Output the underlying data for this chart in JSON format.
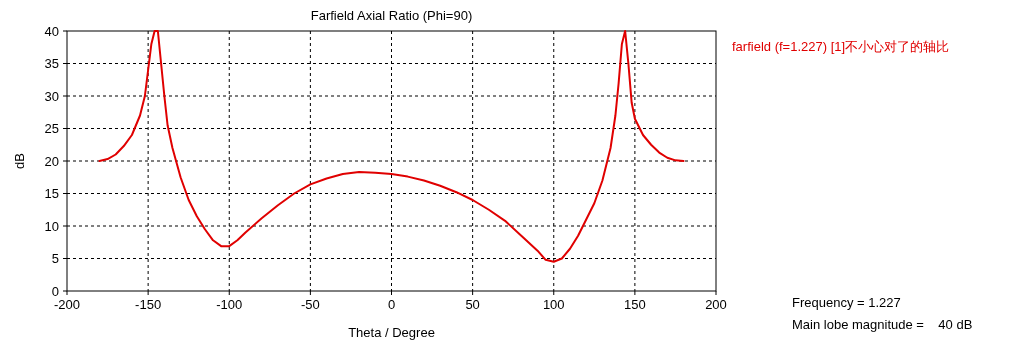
{
  "chart_data": {
    "type": "line",
    "title": "Farfield  Axial Ratio (Phi=90)",
    "xlabel": "Theta / Degree",
    "ylabel": "dB",
    "xlim": [
      -200,
      200
    ],
    "xticks": [
      -200,
      -150,
      -100,
      -50,
      0,
      50,
      100,
      150,
      200
    ],
    "ylim": [
      0,
      40
    ],
    "yticks": [
      0,
      5,
      10,
      15,
      20,
      25,
      30,
      35,
      40
    ],
    "grid": true,
    "legend": "right",
    "line_style": "solid",
    "marker": "none",
    "annotations": [
      "Frequency = 1.227",
      "Main lobe magnitude =    40 dB"
    ],
    "series": [
      {
        "name": "farfield (f=1.227) [1]不小心对了的轴比",
        "color": "#e00000",
        "x": [
          -180,
          -175,
          -170,
          -165,
          -160,
          -155,
          -152,
          -150,
          -148,
          -146,
          -144,
          -142,
          -140,
          -138,
          -135,
          -130,
          -125,
          -120,
          -115,
          -110,
          -105,
          -100,
          -95,
          -90,
          -80,
          -70,
          -60,
          -50,
          -40,
          -30,
          -20,
          -10,
          0,
          10,
          20,
          30,
          40,
          50,
          60,
          70,
          80,
          90,
          95,
          100,
          105,
          110,
          115,
          120,
          125,
          130,
          135,
          138,
          140,
          142,
          144,
          146,
          148,
          150,
          155,
          160,
          165,
          170,
          175,
          180
        ],
        "values": [
          20,
          20.3,
          21,
          22.3,
          24,
          27,
          30,
          34,
          38,
          40,
          40,
          35,
          30,
          25.5,
          22,
          17.5,
          14,
          11.5,
          9.5,
          7.8,
          6.9,
          6.9,
          7.8,
          9,
          11.2,
          13.2,
          15,
          16.4,
          17.3,
          18,
          18.3,
          18.2,
          18,
          17.6,
          17,
          16.2,
          15.2,
          14,
          12.5,
          10.8,
          8.5,
          6.2,
          4.8,
          4.5,
          5,
          6.5,
          8.5,
          11,
          13.5,
          17,
          22,
          27,
          32,
          38,
          40,
          35,
          29,
          26.5,
          24,
          22.5,
          21.3,
          20.5,
          20.1,
          20
        ]
      }
    ]
  }
}
